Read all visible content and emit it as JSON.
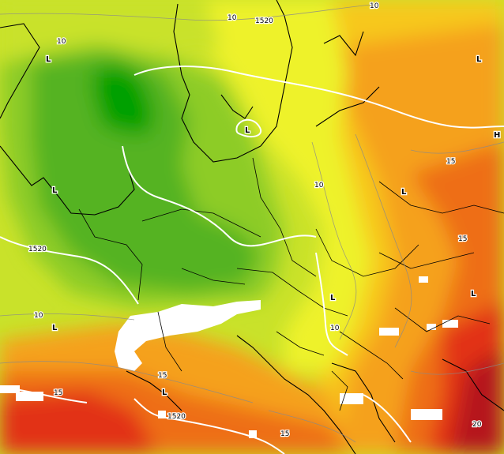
{
  "map": {
    "contour_labels": {
      "c1520_top": "1520",
      "c1520_left": "1520",
      "c1520_bottom": "1520",
      "c10_a": "10",
      "c10_b": "10",
      "c10_c": "10",
      "c10_d": "10",
      "c10_e": "10",
      "c10_f": "10",
      "c15_a": "15",
      "c15_b": "15",
      "c15_c": "15",
      "c15_d": "15",
      "c15_e": "15",
      "c20_a": "20"
    },
    "pressure_centers": {
      "low_1": "L",
      "low_2": "L",
      "low_3": "L",
      "low_4": "L",
      "low_5": "L",
      "low_6": "L",
      "low_7": "L",
      "low_8": "L",
      "high_1": "H"
    },
    "colors": {
      "cold_core": "#00a000",
      "cool": "#55b322",
      "mild_green": "#8dcc28",
      "yellow_green": "#c9e22a",
      "yellow": "#eef22a",
      "orange_yellow": "#f7c81f",
      "orange": "#f5a11c",
      "dark_orange": "#ee6e18",
      "red": "#e23219",
      "dark_red": "#b5131a",
      "snow_mask": "#ffffff"
    }
  }
}
